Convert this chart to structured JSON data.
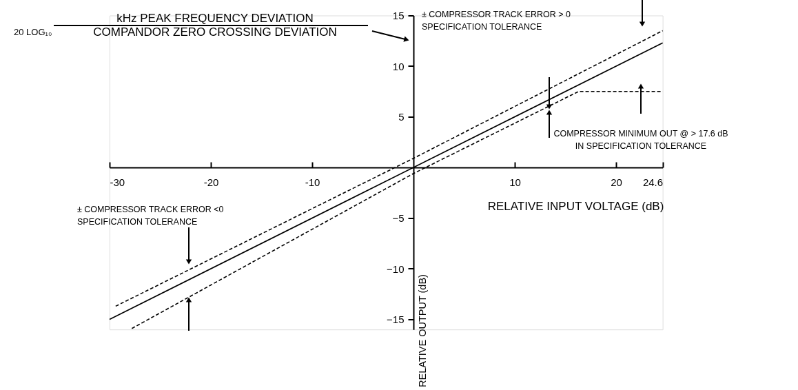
{
  "chart_data": {
    "type": "line",
    "xlabel": "RELATIVE INPUT VOLTAGE (dB)",
    "ylabel": "RELATIVE OUTPUT (dB)",
    "xlim": [
      -30,
      24.6
    ],
    "ylim": [
      -16,
      15
    ],
    "xticks": [
      -30,
      -20,
      -10,
      10,
      20,
      24.6
    ],
    "yticks": [
      -15,
      -10,
      -5,
      5,
      10,
      15
    ],
    "series": [
      {
        "color": "#000000",
        "line_style": "solid",
        "x": [
          -30,
          24.6
        ],
        "values": [
          -15,
          12.3
        ]
      },
      {
        "color": "#000000",
        "line_style": "dashed",
        "x": [
          -29.4,
          0,
          24.6
        ],
        "values": [
          -13.7,
          0.9,
          13.5
        ]
      },
      {
        "color": "#000000",
        "line_style": "dashed",
        "x": [
          -27.8,
          0,
          16.3,
          24.6
        ],
        "values": [
          -15.9,
          -0.6,
          7.5,
          7.5
        ]
      }
    ],
    "annotations": [
      "20 LOG₁₀",
      "kHz PEAK FREQUENCY DEVIATION",
      "COMPANDOR ZERO CROSSING DEVIATION",
      "± COMPRESSOR TRACK ERROR > 0\nSPECIFICATION TOLERANCE",
      "COMPRESSOR MINIMUM OUT @ > 17.6 dB\nIN SPECIFICATION TOLERANCE",
      "± COMPRESSOR TRACK ERROR <0\nSPECIFICATION TOLERANCE"
    ],
    "marker": "none",
    "grid": false
  }
}
